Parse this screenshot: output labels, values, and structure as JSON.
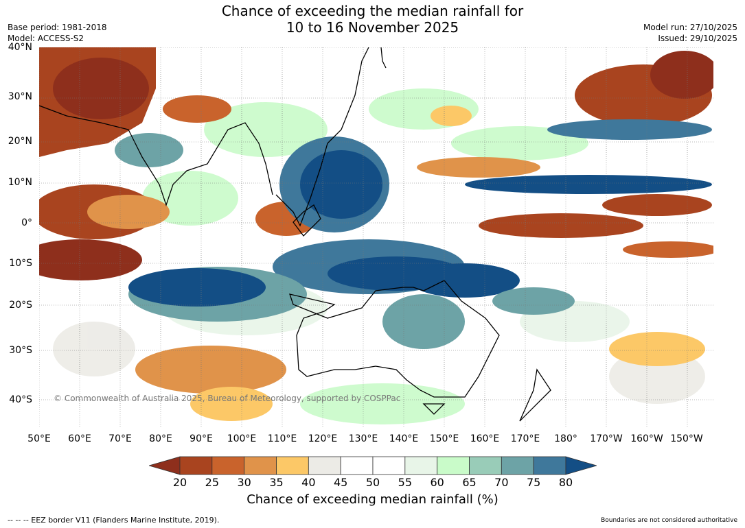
{
  "header": {
    "title_line1": "Chance of exceeding the median rainfall for",
    "title_line2": "10 to 16 November 2025",
    "base_period": "Base period: 1981-2018",
    "model": "Model: ACCESS-S2",
    "model_run": "Model run: 27/10/2025",
    "issued": "Issued: 29/10/2025"
  },
  "map": {
    "lat_labels": [
      "40°N",
      "30°N",
      "20°N",
      "10°N",
      "0°",
      "10°S",
      "20°S",
      "30°S",
      "40°S"
    ],
    "lon_labels": [
      "50°E",
      "60°E",
      "70°E",
      "80°E",
      "90°E",
      "100°E",
      "110°E",
      "120°E",
      "130°E",
      "140°E",
      "150°E",
      "160°E",
      "170°E",
      "180°",
      "170°W",
      "160°W",
      "150°W"
    ],
    "copyright": "© Commonwealth of Australia 2025, Bureau of Meteorology, supported by COSPPac"
  },
  "colorbar": {
    "ticks": [
      "20",
      "25",
      "30",
      "35",
      "40",
      "45",
      "50",
      "55",
      "60",
      "65",
      "70",
      "75",
      "80"
    ],
    "colors": [
      "#8e2f1c",
      "#a9441f",
      "#c9632c",
      "#e0934a",
      "#fcc867",
      "#ecebe6",
      "#ffffff",
      "#ffffff",
      "#e8f5e8",
      "#c9fbc9",
      "#99ccb8",
      "#6da3a6",
      "#3f789b",
      "#134e85"
    ],
    "title": "Chance of exceeding median rainfall (%)"
  },
  "footer": {
    "eez_note": "--  --  -- EEZ border V11 (Flanders Marine Institute, 2019).",
    "disclaimer": "Boundaries are not considered authoritative"
  }
}
